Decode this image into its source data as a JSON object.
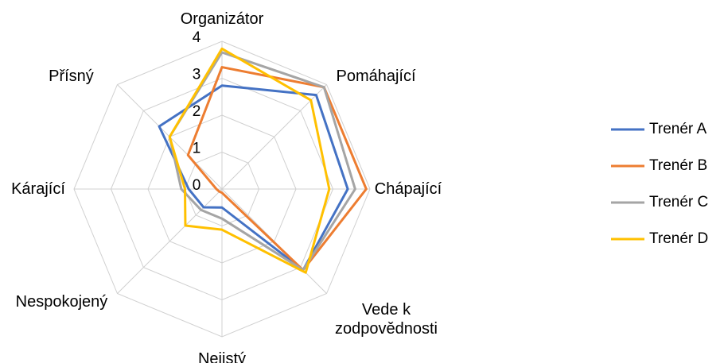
{
  "chart_data": {
    "type": "radar",
    "categories": [
      "Organizátor",
      "Pomáhající",
      "Chápající",
      "Vede k zodpovědnosti",
      "Nejistý",
      "Nespokojený",
      "Kárající",
      "Přísný"
    ],
    "ylim": [
      0,
      4
    ],
    "yticks": [
      0,
      1,
      2,
      3,
      4
    ],
    "grid": true,
    "legend": "right",
    "series": [
      {
        "name": "Trenér A",
        "color": "#4472c4",
        "values": [
          2.8,
          3.6,
          3.4,
          3.1,
          0.5,
          0.7,
          0.9,
          2.4
        ]
      },
      {
        "name": "Trenér B",
        "color": "#ed7d31",
        "values": [
          3.3,
          3.9,
          3.9,
          3.1,
          0.1,
          0.1,
          0.15,
          1.3
        ]
      },
      {
        "name": "Trenér C",
        "color": "#a5a5a5",
        "values": [
          3.7,
          3.9,
          3.6,
          3.1,
          0.8,
          0.8,
          1.1,
          2.0
        ]
      },
      {
        "name": "Trenér D",
        "color": "#ffc000",
        "values": [
          3.8,
          3.4,
          2.9,
          3.2,
          1.1,
          1.4,
          1.0,
          2.0
        ]
      }
    ]
  }
}
